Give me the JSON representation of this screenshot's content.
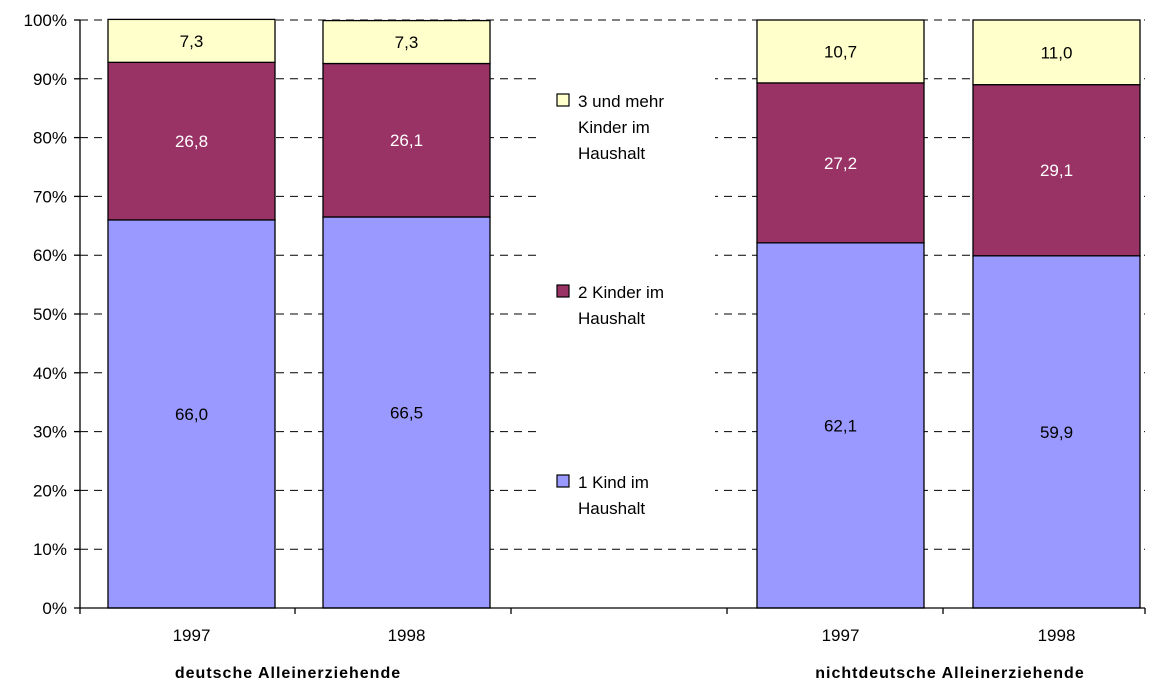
{
  "chart_data": {
    "type": "bar",
    "stacked": true,
    "ylim": [
      0,
      100
    ],
    "y_ticks": [
      "0%",
      "10%",
      "20%",
      "30%",
      "40%",
      "50%",
      "60%",
      "70%",
      "80%",
      "90%",
      "100%"
    ],
    "grid": "dashed horizontal",
    "legend_position": "center",
    "groups": [
      "deutsche Alleinerziehende",
      "nichtdeutsche Alleinerziehende"
    ],
    "categories": [
      "1997",
      "1998",
      "1997",
      "1998"
    ],
    "category_group": [
      0,
      0,
      1,
      1
    ],
    "series": [
      {
        "name": "1 Kind im Haushalt",
        "color": "#9999FF",
        "label_color": "#000000",
        "values": [
          66.0,
          66.5,
          62.1,
          59.9
        ],
        "labels": [
          "66,0",
          "66,5",
          "62,1",
          "59,9"
        ]
      },
      {
        "name": "2 Kinder im Haushalt",
        "color": "#993366",
        "label_color": "#FFFFFF",
        "values": [
          26.8,
          26.1,
          27.2,
          29.1
        ],
        "labels": [
          "26,8",
          "26,1",
          "27,2",
          "29,1"
        ]
      },
      {
        "name": "3 und mehr Kinder im Haushalt",
        "color": "#FFFFCC",
        "label_color": "#000000",
        "values": [
          7.3,
          7.3,
          10.7,
          11.0
        ],
        "labels": [
          "7,3",
          "7,3",
          "10,7",
          "11,0"
        ]
      }
    ],
    "legend_lines": [
      [
        "3 und mehr",
        "Kinder im",
        "Haushalt"
      ],
      [
        "2 Kinder im",
        "Haushalt"
      ],
      [
        "1 Kind im",
        "Haushalt"
      ]
    ]
  }
}
